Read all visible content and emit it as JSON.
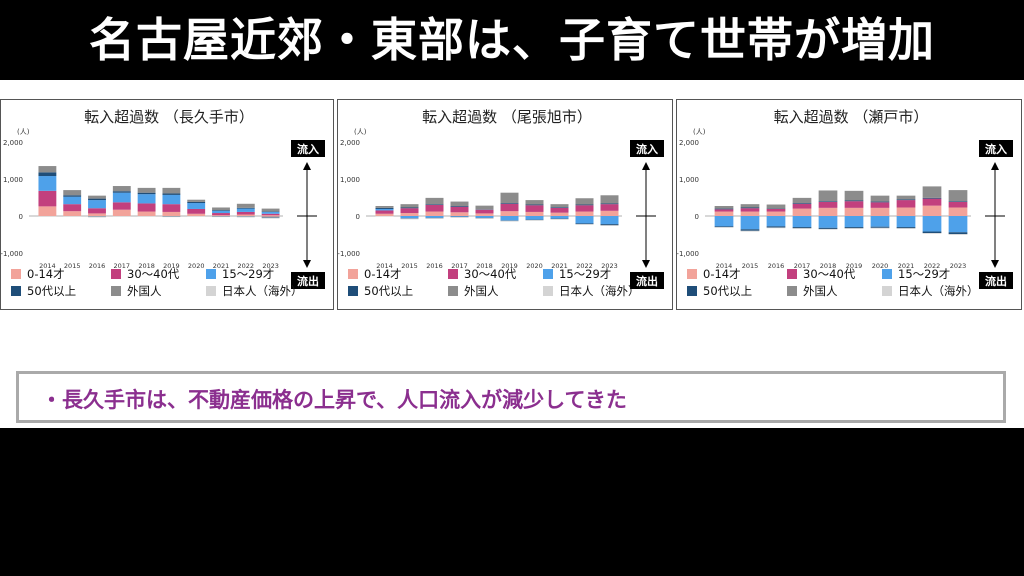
{
  "page_title": "名古屋近郊・東部は、子育て世帯が増加",
  "note": "・長久手市は、不動産価格の上昇で、人口流入が減少してきた",
  "colors": {
    "age_0_14": "#f2a39a",
    "age_30_40": "#c2407e",
    "age_15_29": "#4ea1ea",
    "age_50_plus": "#1f4e79",
    "foreigners": "#8c8c8c",
    "japanese_abroad": "#d4d4d4"
  },
  "chart_data": [
    {
      "type": "bar",
      "stacked": true,
      "title": "転入超過数 （長久手市）",
      "unit": "(人)",
      "categories": [
        "2014",
        "2015",
        "2016",
        "2017",
        "2018",
        "2019",
        "2020",
        "2021",
        "2022",
        "2023"
      ],
      "ylim": [
        -1000,
        2000
      ],
      "yticks": [
        "2,000",
        "1,000",
        "0",
        "-1,000"
      ],
      "arrow_up_label": "流入",
      "arrow_down_label": "流出",
      "legend": [
        "0-14才",
        "30〜40代",
        "15〜29才",
        "50代以上",
        "外国人",
        "日本人（海外）"
      ],
      "series": [
        {
          "name": "0-14才",
          "values": [
            260,
            130,
            70,
            170,
            120,
            110,
            60,
            20,
            40,
            20
          ]
        },
        {
          "name": "30〜40代",
          "values": [
            420,
            190,
            140,
            200,
            220,
            210,
            130,
            60,
            70,
            40
          ]
        },
        {
          "name": "15〜29才",
          "values": [
            400,
            200,
            220,
            260,
            250,
            250,
            160,
            60,
            90,
            50
          ]
        },
        {
          "name": "50代以上",
          "values": [
            100,
            40,
            40,
            40,
            40,
            40,
            30,
            20,
            20,
            10
          ]
        },
        {
          "name": "外国人",
          "values": [
            170,
            140,
            80,
            140,
            130,
            150,
            60,
            70,
            110,
            80
          ]
        },
        {
          "name": "日本人（海外）",
          "values": [
            0,
            0,
            0,
            0,
            0,
            0,
            0,
            0,
            0,
            0
          ]
        }
      ],
      "negative_series": [
        {
          "name": "0-14才",
          "values": [
            0,
            0,
            0,
            0,
            0,
            0,
            0,
            0,
            0,
            -20
          ]
        },
        {
          "name": "50代以上",
          "values": [
            0,
            0,
            -10,
            0,
            0,
            -10,
            0,
            -10,
            -10,
            -20
          ]
        },
        {
          "name": "日本人（海外）",
          "values": [
            -20,
            -20,
            -30,
            -20,
            -20,
            -20,
            -20,
            -20,
            -30,
            -30
          ]
        }
      ]
    },
    {
      "type": "bar",
      "stacked": true,
      "title": "転入超過数 （尾張旭市）",
      "unit": "(人)",
      "categories": [
        "2014",
        "2015",
        "2016",
        "2017",
        "2018",
        "2019",
        "2020",
        "2021",
        "2022",
        "2023"
      ],
      "ylim": [
        -1000,
        2000
      ],
      "yticks": [
        "2,000",
        "1,000",
        "0",
        "-1,000"
      ],
      "arrow_up_label": "流入",
      "arrow_down_label": "流出",
      "legend": [
        "0-14才",
        "30〜40代",
        "15〜29才",
        "50代以上",
        "外国人",
        "日本人（海外）"
      ],
      "series": [
        {
          "name": "0-14才",
          "values": [
            60,
            80,
            120,
            100,
            70,
            130,
            110,
            90,
            120,
            140
          ]
        },
        {
          "name": "30〜40代",
          "values": [
            90,
            130,
            180,
            150,
            100,
            200,
            180,
            130,
            170,
            180
          ]
        },
        {
          "name": "15〜29才",
          "values": [
            40,
            0,
            0,
            0,
            0,
            0,
            0,
            0,
            0,
            0
          ]
        },
        {
          "name": "50代以上",
          "values": [
            30,
            20,
            20,
            20,
            10,
            20,
            20,
            20,
            20,
            20
          ]
        },
        {
          "name": "外国人",
          "values": [
            50,
            90,
            170,
            120,
            100,
            280,
            120,
            80,
            170,
            220
          ]
        },
        {
          "name": "日本人（海外）",
          "values": [
            0,
            0,
            0,
            0,
            0,
            0,
            0,
            0,
            0,
            0
          ]
        }
      ],
      "negative_series": [
        {
          "name": "15〜29才",
          "values": [
            0,
            -60,
            -50,
            -20,
            -50,
            -120,
            -100,
            -70,
            -200,
            -220
          ]
        },
        {
          "name": "50代以上",
          "values": [
            0,
            -10,
            -10,
            -10,
            -10,
            -10,
            -10,
            -10,
            -20,
            -30
          ]
        },
        {
          "name": "日本人（海外）",
          "values": [
            -10,
            -20,
            -20,
            -20,
            -20,
            -20,
            -20,
            -20,
            -20,
            -20
          ]
        }
      ]
    },
    {
      "type": "bar",
      "stacked": true,
      "title": "転入超過数 （瀬戸市）",
      "unit": "(人)",
      "categories": [
        "2014",
        "2015",
        "2016",
        "2017",
        "2018",
        "2019",
        "2020",
        "2021",
        "2022",
        "2023"
      ],
      "ylim": [
        -1000,
        2000
      ],
      "yticks": [
        "2,000",
        "1,000",
        "0",
        "-1,000"
      ],
      "arrow_up_label": "流入",
      "arrow_down_label": "流出",
      "legend": [
        "0-14才",
        "30〜40代",
        "15〜29才",
        "50代以上",
        "外国人",
        "日本人（海外）"
      ],
      "series": [
        {
          "name": "0-14才",
          "values": [
            120,
            120,
            120,
            200,
            220,
            220,
            220,
            230,
            280,
            230
          ]
        },
        {
          "name": "30〜40代",
          "values": [
            60,
            90,
            70,
            130,
            160,
            180,
            150,
            200,
            190,
            150
          ]
        },
        {
          "name": "15〜29才",
          "values": [
            0,
            0,
            0,
            0,
            0,
            0,
            0,
            0,
            0,
            0
          ]
        },
        {
          "name": "50代以上",
          "values": [
            20,
            20,
            10,
            20,
            20,
            20,
            20,
            20,
            20,
            20
          ]
        },
        {
          "name": "外国人",
          "values": [
            70,
            90,
            110,
            140,
            290,
            260,
            160,
            100,
            310,
            300
          ]
        },
        {
          "name": "日本人（海外）",
          "values": [
            0,
            0,
            0,
            0,
            0,
            0,
            0,
            0,
            0,
            0
          ]
        }
      ],
      "negative_series": [
        {
          "name": "15〜29才",
          "values": [
            -280,
            -360,
            -280,
            -300,
            -320,
            -300,
            -290,
            -300,
            -420,
            -440
          ]
        },
        {
          "name": "50代以上",
          "values": [
            -20,
            -40,
            -30,
            -30,
            -30,
            -30,
            -30,
            -30,
            -40,
            -50
          ]
        },
        {
          "name": "日本人（海外）",
          "values": [
            -20,
            -20,
            -20,
            -20,
            -20,
            -20,
            -20,
            -20,
            -20,
            -20
          ]
        }
      ]
    }
  ]
}
